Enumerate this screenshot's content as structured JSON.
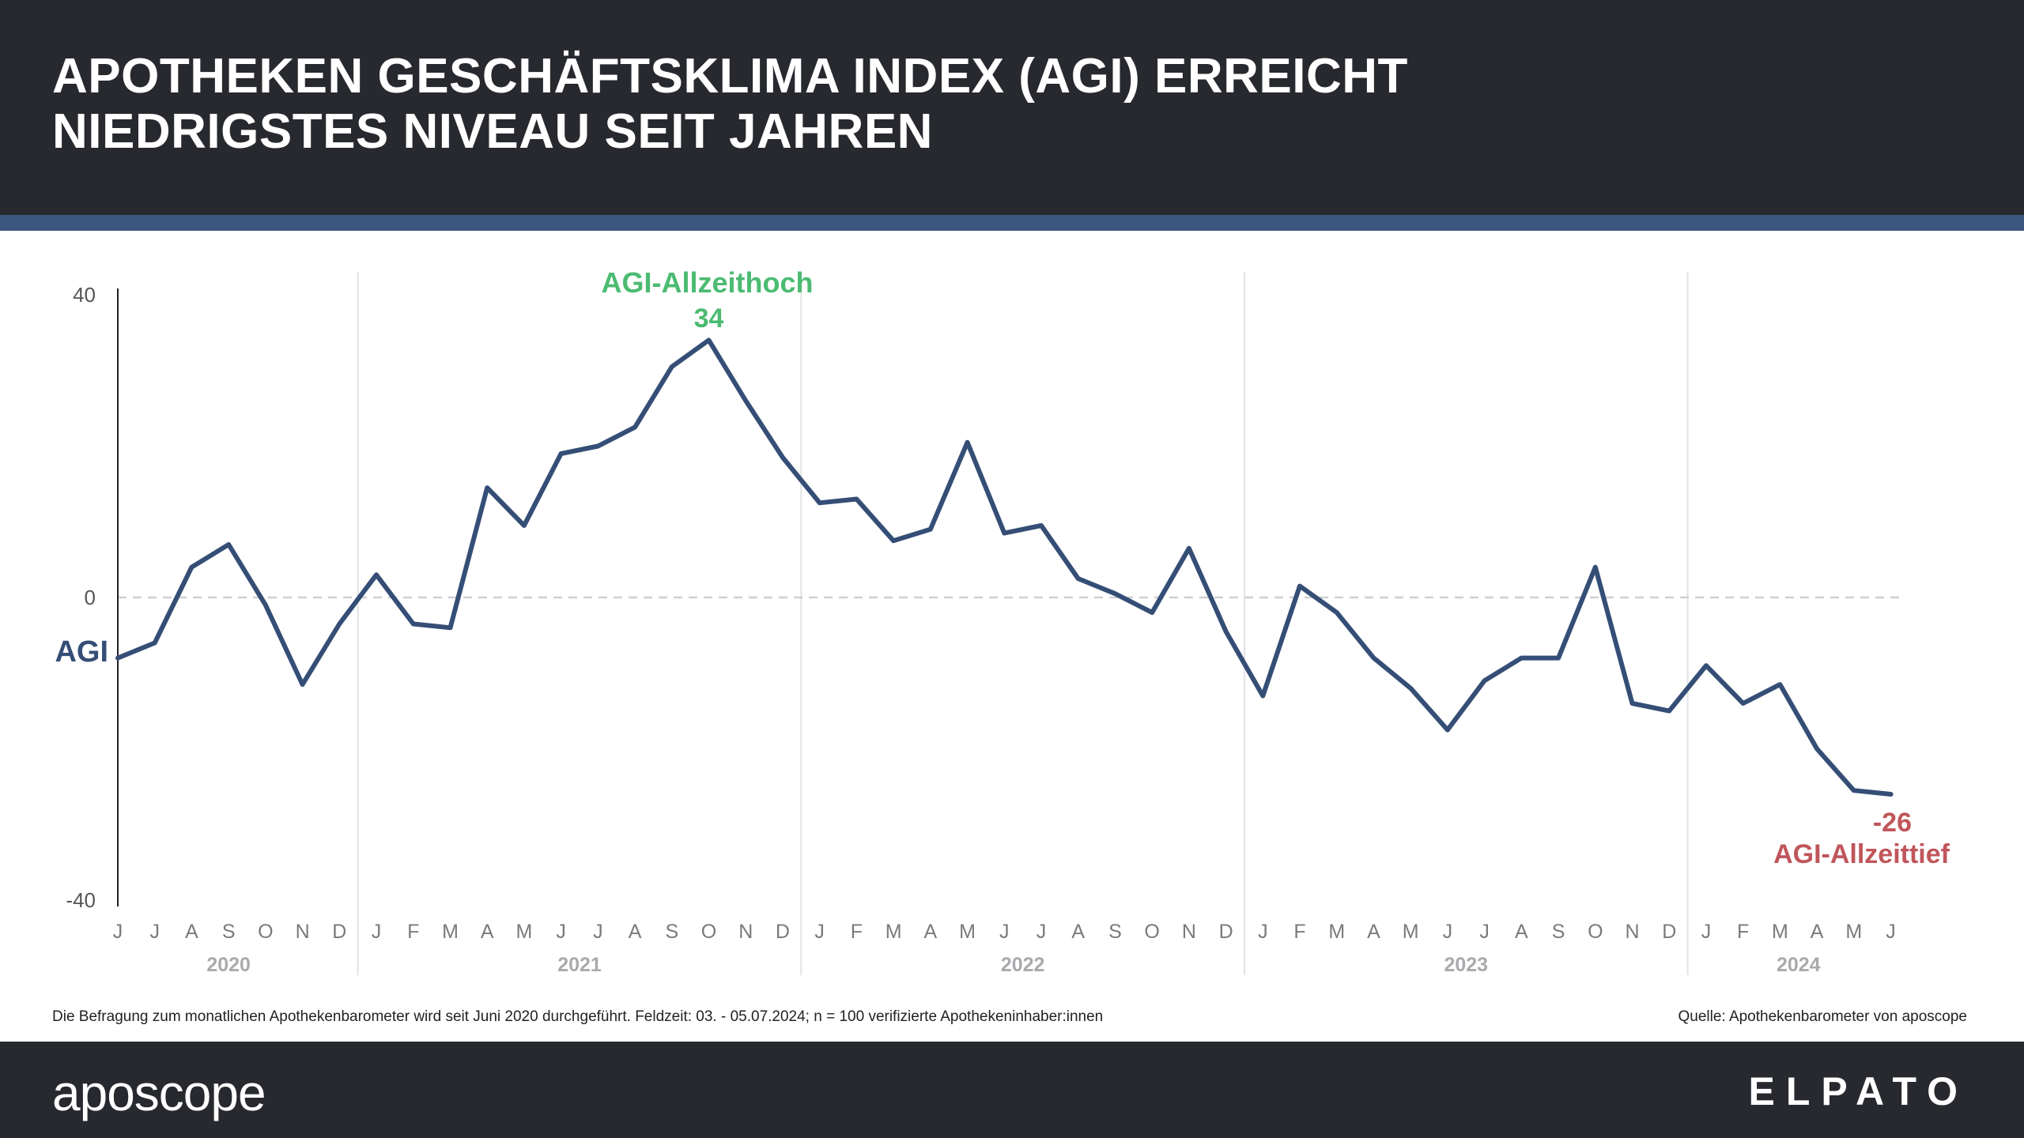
{
  "header": {
    "title_line1": "APOTHEKEN GESCHÄFTSKLIMA INDEX (AGI) ERREICHT",
    "title_line2": "NIEDRIGSTES NIVEAU SEIT JAHREN"
  },
  "footer": {
    "footnote": "Die Befragung zum monatlichen Apothekenbarometer  wird seit Juni 2020 durchgeführt.  Feldzeit: 03. - 05.07.2024;  n = 100 verifizierte Apothekeninhaber:innen",
    "source": "Quelle: Apothekenbarometer von aposcope",
    "logo_left": "aposcope",
    "logo_right": "ELPATO"
  },
  "colors": {
    "line": "#354e76",
    "high": "#4cbb72",
    "low": "#c0565b",
    "header_bg": "#27292e",
    "stripe": "#3c577e"
  },
  "chart_data": {
    "type": "line",
    "title": "APOTHEKEN GESCHÄFTSKLIMA INDEX (AGI) ERREICHT NIEDRIGSTES NIVEAU SEIT JAHREN",
    "ylabel": "",
    "xlabel": "",
    "series_label": "AGI",
    "ylim": [
      -40,
      40
    ],
    "yticks": [
      "40",
      "0",
      "-40"
    ],
    "ytick_values": [
      40,
      0,
      -40
    ],
    "zero_line": true,
    "grid": false,
    "month_labels": [
      "J",
      "J",
      "A",
      "S",
      "O",
      "N",
      "D",
      "J",
      "F",
      "M",
      "A",
      "M",
      "J",
      "J",
      "A",
      "S",
      "O",
      "N",
      "D",
      "J",
      "F",
      "M",
      "A",
      "M",
      "J",
      "J",
      "A",
      "S",
      "O",
      "N",
      "D",
      "J",
      "F",
      "M",
      "A",
      "M",
      "J",
      "J",
      "A",
      "S",
      "O",
      "N",
      "D",
      "J",
      "F",
      "M",
      "A",
      "M",
      "J"
    ],
    "years": [
      {
        "label": "2020",
        "start_index": 0,
        "end_index": 6
      },
      {
        "label": "2021",
        "start_index": 7,
        "end_index": 18
      },
      {
        "label": "2022",
        "start_index": 19,
        "end_index": 30
      },
      {
        "label": "2023",
        "start_index": 31,
        "end_index": 42
      },
      {
        "label": "2024",
        "start_index": 43,
        "end_index": 48
      }
    ],
    "values": [
      -8,
      -6,
      4,
      7,
      -1,
      -11.5,
      -3.5,
      3,
      -3.5,
      -4,
      14.5,
      9.5,
      19,
      20,
      22.5,
      30.5,
      34,
      26,
      18.5,
      12.5,
      13,
      7.5,
      9,
      20.5,
      8.5,
      9.5,
      2.5,
      0.5,
      -2,
      6.5,
      -4.5,
      -13,
      1.5,
      -2,
      -8,
      -12,
      -17.5,
      -11,
      -8,
      -8,
      4,
      -14,
      -15,
      -9,
      -14,
      -11.5,
      -20,
      -25.5,
      -26
    ],
    "annotations": [
      {
        "label": "AGI-Allzeithoch",
        "value_label": "34",
        "index": 16,
        "value": 34,
        "color": "#4cbb72"
      },
      {
        "label": "AGI-Allzeittief",
        "value_label": "-26",
        "index": 48,
        "value": -26,
        "color": "#c0565b"
      }
    ]
  }
}
